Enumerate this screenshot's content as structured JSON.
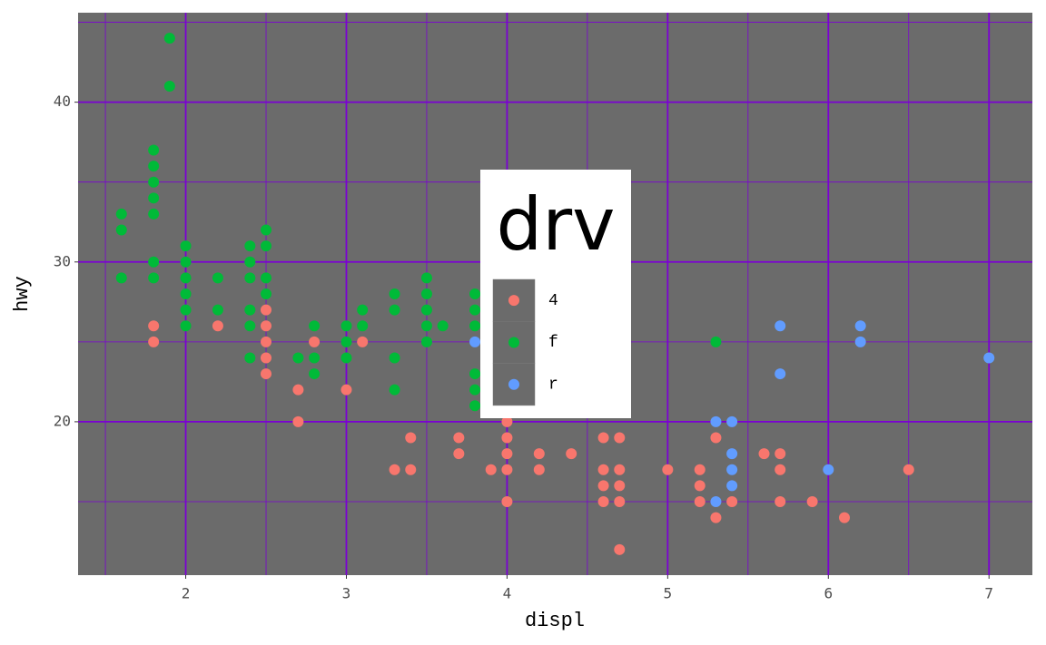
{
  "chart_data": {
    "type": "scatter",
    "x_label": "displ",
    "y_label": "hwy",
    "legend_title": "drv",
    "legend_position": "center",
    "xlim": [
      1.33,
      7.27
    ],
    "ylim": [
      10.4,
      45.6
    ],
    "xticks": [
      2,
      3,
      4,
      5,
      6,
      7
    ],
    "yticks": [
      20,
      30,
      40
    ],
    "xminor": [
      1.5,
      2.5,
      3.5,
      4.5,
      5.5,
      6.5
    ],
    "yminor": [
      15,
      25,
      35,
      45
    ],
    "grid": true,
    "background": "#6b6b6b",
    "grid_color": "#7b00d4",
    "series": [
      {
        "name": "4",
        "color": "#F8766D",
        "x": [
          1.8,
          1.8,
          2.2,
          2.5,
          2.5,
          2.5,
          2.5,
          2.5,
          2.7,
          2.7,
          2.8,
          3.0,
          3.1,
          3.3,
          3.4,
          3.4,
          3.7,
          3.7,
          3.9,
          4.0,
          4.0,
          4.0,
          4.0,
          4.0,
          4.2,
          4.2,
          4.4,
          4.6,
          4.6,
          4.6,
          4.6,
          4.7,
          4.7,
          4.7,
          4.7,
          4.7,
          5.0,
          5.2,
          5.2,
          5.2,
          5.3,
          5.3,
          5.4,
          5.6,
          5.7,
          5.7,
          5.7,
          5.9,
          6.1,
          6.5
        ],
        "values": [
          26,
          25,
          26,
          27,
          26,
          25,
          24,
          23,
          22,
          20,
          25,
          22,
          25,
          17,
          19,
          17,
          19,
          18,
          17,
          20,
          19,
          18,
          17,
          15,
          18,
          17,
          18,
          19,
          17,
          16,
          15,
          19,
          17,
          16,
          15,
          12,
          17,
          17,
          16,
          15,
          19,
          14,
          15,
          18,
          18,
          17,
          15,
          15,
          14,
          17
        ]
      },
      {
        "name": "f",
        "color": "#00BA38",
        "x": [
          1.6,
          1.6,
          1.6,
          1.8,
          1.8,
          1.8,
          1.8,
          1.8,
          1.8,
          1.8,
          1.9,
          1.9,
          2.0,
          2.0,
          2.0,
          2.0,
          2.0,
          2.0,
          2.2,
          2.2,
          2.4,
          2.4,
          2.4,
          2.4,
          2.4,
          2.4,
          2.5,
          2.5,
          2.5,
          2.5,
          2.7,
          2.8,
          2.8,
          2.8,
          3.0,
          3.0,
          3.0,
          3.1,
          3.1,
          3.3,
          3.3,
          3.3,
          3.3,
          3.5,
          3.5,
          3.5,
          3.5,
          3.5,
          3.6,
          3.8,
          3.8,
          3.8,
          3.8,
          3.8,
          3.8,
          5.3
        ],
        "values": [
          33,
          32,
          29,
          37,
          36,
          35,
          34,
          33,
          30,
          29,
          44,
          41,
          31,
          30,
          29,
          28,
          27,
          26,
          29,
          27,
          31,
          30,
          29,
          27,
          26,
          24,
          32,
          31,
          29,
          28,
          24,
          26,
          24,
          23,
          26,
          25,
          24,
          27,
          26,
          28,
          27,
          24,
          22,
          29,
          28,
          27,
          26,
          25,
          26,
          28,
          27,
          26,
          23,
          22,
          21,
          25
        ]
      },
      {
        "name": "r",
        "color": "#619CFF",
        "x": [
          3.8,
          5.3,
          5.3,
          5.4,
          5.4,
          5.4,
          5.4,
          5.7,
          5.7,
          6.0,
          6.2,
          6.2,
          7.0
        ],
        "values": [
          25,
          20,
          15,
          20,
          18,
          17,
          16,
          26,
          23,
          17,
          26,
          25,
          24
        ]
      }
    ]
  }
}
